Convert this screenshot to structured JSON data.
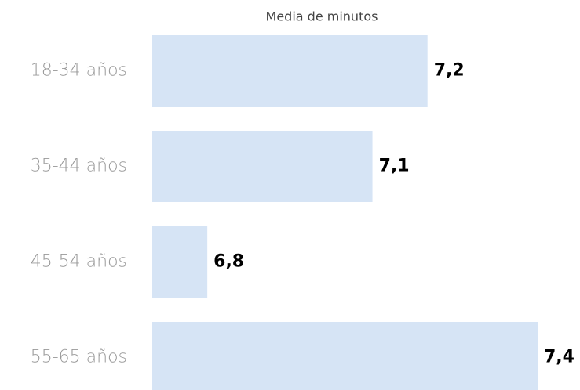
{
  "chart_data": {
    "type": "hbar",
    "title": "Media de minutos",
    "categories": [
      "18-34 años",
      "35-44 años",
      "45-54 años",
      "55-65 años"
    ],
    "values": [
      7.2,
      7.1,
      6.8,
      7.4
    ],
    "value_labels": [
      "7,2",
      "7,1",
      "6,8",
      "7,4"
    ],
    "color": "#d6e4f5",
    "xlim": [
      6.7,
      7.4
    ]
  }
}
